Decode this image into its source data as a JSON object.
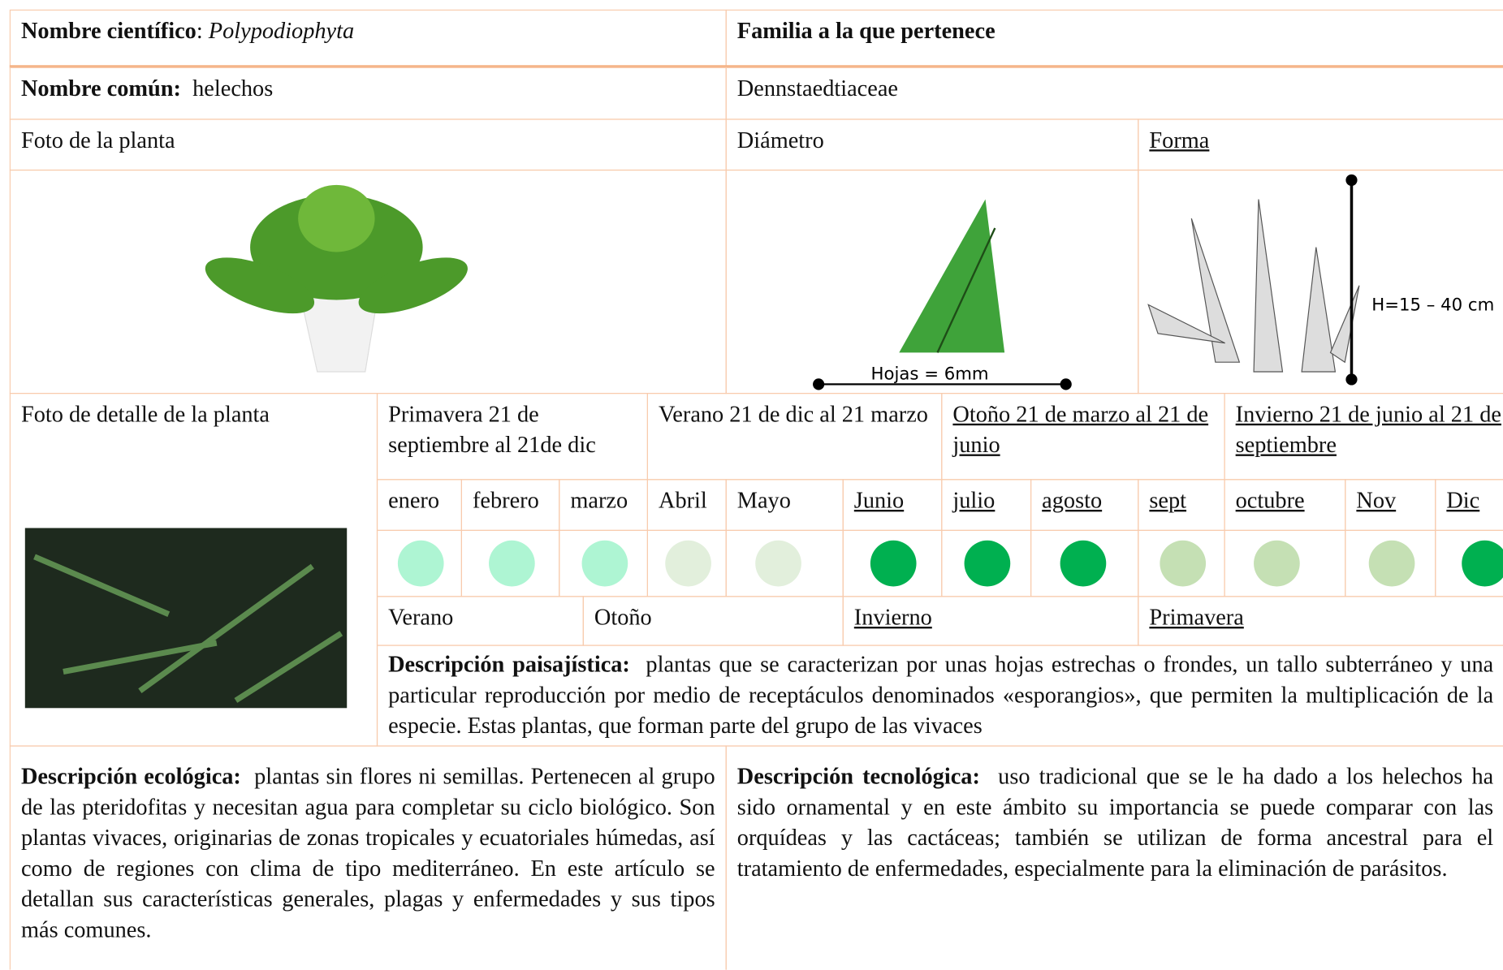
{
  "header": {
    "scientific_label": "Nombre científico",
    "scientific_name": "Polypodiophyta",
    "family_label": "Familia a la que pertenece",
    "common_label": "Nombre común:",
    "common_name": "helechos",
    "family_name": "Dennstaedtiaceae"
  },
  "photo_row": {
    "photo_label": "Foto de la planta",
    "diameter_label": "Diámetro",
    "shape_label": "Forma",
    "leaf_annotation": "Hojas = 6mm",
    "height_annotation": "H=15 – 40 cm"
  },
  "seasons": {
    "detail_label": "Foto de detalle de la planta",
    "spring": "Primavera 21 de septiembre al 21de dic",
    "summer": "Verano 21 de dic al 21 marzo",
    "autumn": "Otoño 21 de marzo al 21 de junio",
    "winter": "Invierno 21 de junio al 21 de septiembre"
  },
  "months": [
    "enero",
    "febrero",
    "marzo",
    "Abril",
    "Mayo",
    "Junio",
    "julio",
    "agosto",
    "sept",
    "octubre",
    "Nov",
    "Dic"
  ],
  "season_bands": [
    "Verano",
    "Otoño",
    "Invierno",
    "Primavera"
  ],
  "landscape": {
    "label": "Descripción paisajística:",
    "text": "plantas que se caracterizan por unas hojas estrechas o frondes, un tallo subterráneo y una particular reproducción por medio de receptáculos denominados «esporangios», que permiten la multiplicación de la especie. Estas plantas, que forman parte del grupo de las vivaces"
  },
  "ecological": {
    "label": "Descripción ecológica:",
    "text": "plantas sin flores ni semillas. Pertenecen al grupo de las pteridofitas y necesitan agua para completar su ciclo biológico. Son plantas vivaces, originarias de zonas tropicales y ecuatoriales húmedas, así como de regiones con clima de tipo mediterráneo. En este artículo se detallan sus características generales, plagas y enfermedades y sus tipos más comunes."
  },
  "technological": {
    "label": "Descripción tecnológica:",
    "text": "uso tradicional que se le ha dado a los helechos ha sido ornamental y en este ámbito su importancia se puede comparar con las orquídeas y las cactáceas; también se utilizan de forma ancestral para el tratamiento de enfermedades, especialmente para la eliminación de parásitos."
  }
}
